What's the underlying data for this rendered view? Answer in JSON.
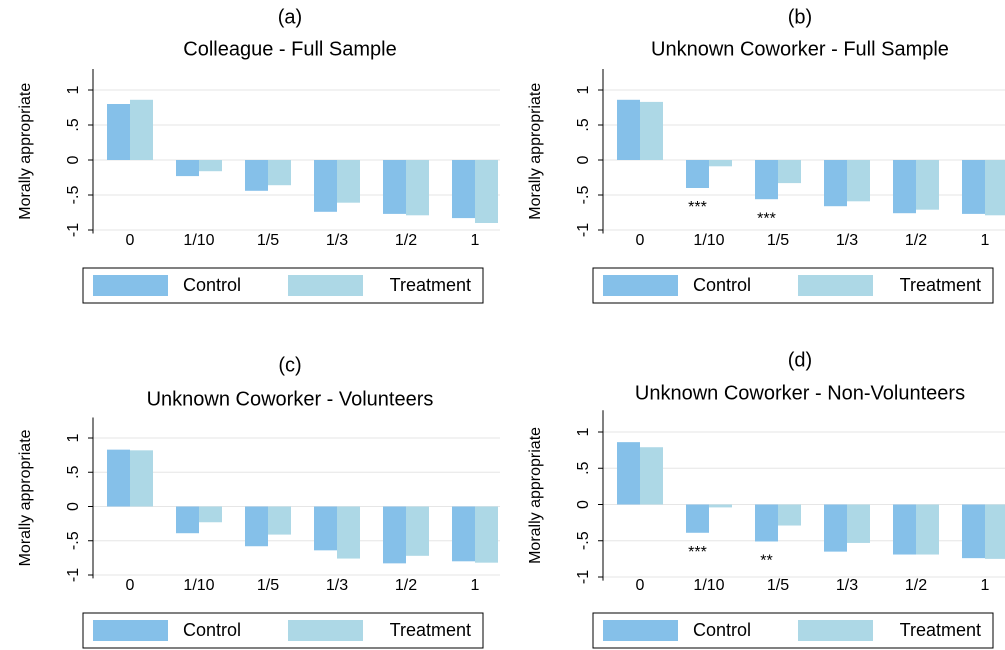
{
  "chart_data": [
    {
      "type": "bar",
      "panel_label": "(a)",
      "title": "Colleague - Full Sample",
      "ylabel": "Morally appropriate",
      "categories": [
        "0",
        "1/10",
        "1/5",
        "1/3",
        "1/2",
        "1"
      ],
      "series": [
        {
          "name": "Control",
          "color": "#85c0e9",
          "values": [
            0.8,
            -0.23,
            -0.44,
            -0.74,
            -0.77,
            -0.83
          ]
        },
        {
          "name": "Treatment",
          "color": "#add8e6",
          "values": [
            0.86,
            -0.16,
            -0.36,
            -0.61,
            -0.79,
            -0.9
          ]
        }
      ],
      "ylim": [
        -1.05,
        1.3
      ],
      "yticks": [
        {
          "value": -1,
          "label": "-1"
        },
        {
          "value": -0.5,
          "label": "-.5"
        },
        0,
        {
          "value": 0.5,
          "label": ".5"
        },
        1
      ],
      "grid": true,
      "legend": "bottom",
      "annotations": []
    },
    {
      "type": "bar",
      "panel_label": "(b)",
      "title": "Unknown Coworker - Full Sample",
      "ylabel": "Morally appropriate",
      "categories": [
        "0",
        "1/10",
        "1/5",
        "1/3",
        "1/2",
        "1"
      ],
      "series": [
        {
          "name": "Control",
          "color": "#85c0e9",
          "values": [
            0.86,
            -0.4,
            -0.56,
            -0.66,
            -0.76,
            -0.77
          ]
        },
        {
          "name": "Treatment",
          "color": "#add8e6",
          "values": [
            0.83,
            -0.09,
            -0.33,
            -0.59,
            -0.71,
            -0.79
          ]
        }
      ],
      "ylim": [
        -1.05,
        1.3
      ],
      "yticks": [
        {
          "value": -1,
          "label": "-1"
        },
        {
          "value": -0.5,
          "label": "-.5"
        },
        0,
        {
          "value": 0.5,
          "label": ".5"
        },
        1
      ],
      "grid": true,
      "legend": "bottom",
      "annotations": [
        {
          "text": "***",
          "category": "1/10"
        },
        {
          "text": "***",
          "category": "1/5"
        }
      ]
    },
    {
      "type": "bar",
      "panel_label": "(c)",
      "title": "Unknown Coworker - Volunteers",
      "ylabel": "Morally appropriate",
      "categories": [
        "0",
        "1/10",
        "1/5",
        "1/3",
        "1/2",
        "1"
      ],
      "series": [
        {
          "name": "Control",
          "color": "#85c0e9",
          "values": [
            0.83,
            -0.39,
            -0.58,
            -0.64,
            -0.83,
            -0.8
          ]
        },
        {
          "name": "Treatment",
          "color": "#add8e6",
          "values": [
            0.82,
            -0.23,
            -0.41,
            -0.76,
            -0.72,
            -0.82
          ]
        }
      ],
      "ylim": [
        -1.05,
        1.3
      ],
      "yticks": [
        {
          "value": -1,
          "label": "-1"
        },
        {
          "value": -0.5,
          "label": "-.5"
        },
        0,
        {
          "value": 0.5,
          "label": ".5"
        },
        1
      ],
      "grid": true,
      "legend": "bottom",
      "annotations": []
    },
    {
      "type": "bar",
      "panel_label": "(d)",
      "title": "Unknown Coworker - Non-Volunteers",
      "ylabel": "Morally appropriate",
      "categories": [
        "0",
        "1/10",
        "1/5",
        "1/3",
        "1/2",
        "1"
      ],
      "series": [
        {
          "name": "Control",
          "color": "#85c0e9",
          "values": [
            0.86,
            -0.39,
            -0.51,
            -0.65,
            -0.69,
            -0.74
          ]
        },
        {
          "name": "Treatment",
          "color": "#add8e6",
          "values": [
            0.79,
            -0.04,
            -0.29,
            -0.53,
            -0.69,
            -0.75
          ]
        }
      ],
      "ylim": [
        -1.05,
        1.3
      ],
      "yticks": [
        {
          "value": -1,
          "label": "-1"
        },
        {
          "value": -0.5,
          "label": "-.5"
        },
        0,
        {
          "value": 0.5,
          "label": ".5"
        },
        1
      ],
      "grid": true,
      "legend": "bottom",
      "annotations": [
        {
          "text": "***",
          "category": "1/10"
        },
        {
          "text": "**",
          "category": "1/5"
        }
      ]
    }
  ]
}
